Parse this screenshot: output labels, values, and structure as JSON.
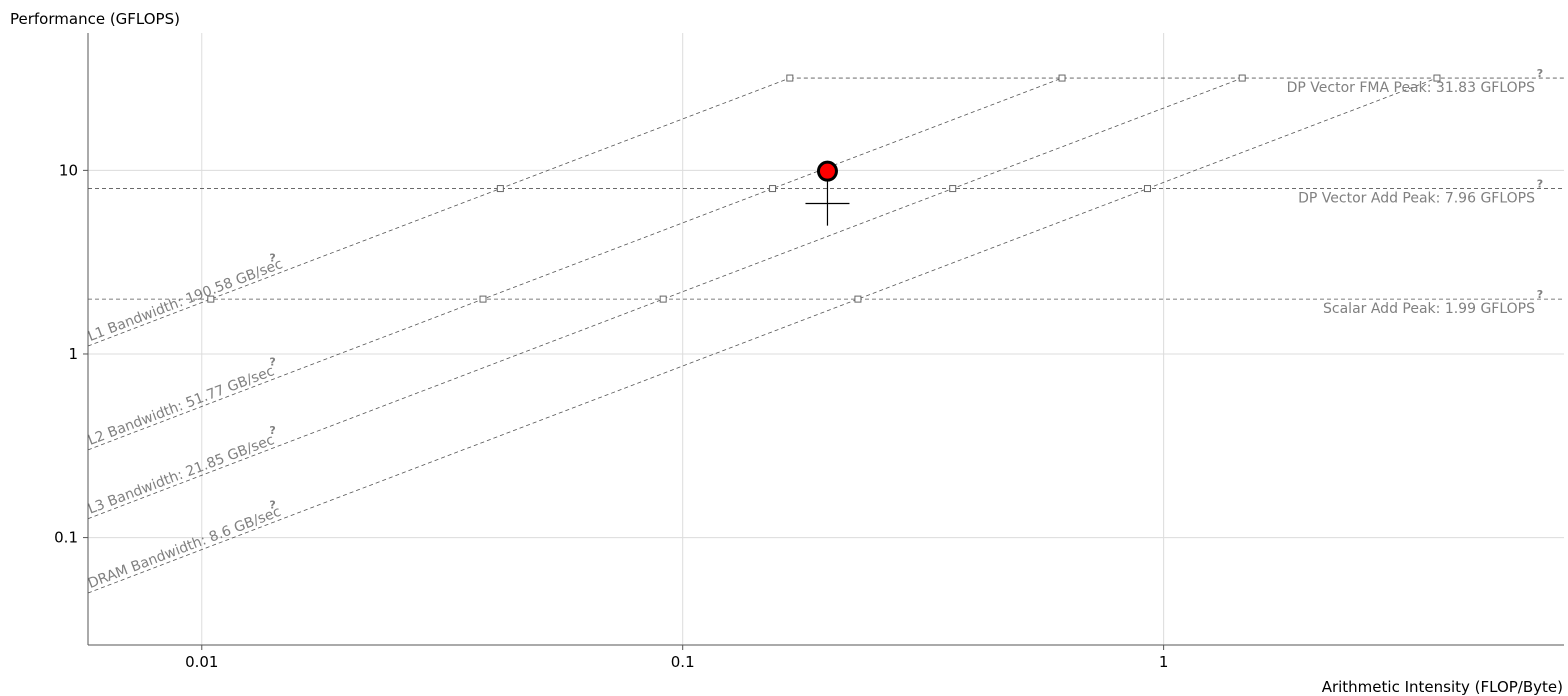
{
  "chart_data": {
    "type": "scatter",
    "scale": "log-log",
    "xlabel": "Arithmetic Intensity (FLOP/Byte)",
    "ylabel": "Performance (GFLOPS)",
    "xlim": [
      0.0058,
      6.8
    ],
    "ylim": [
      0.026,
      56
    ],
    "grid": true,
    "x_ticks": [
      {
        "value": 0.01,
        "label": "0.01"
      },
      {
        "value": 0.1,
        "label": "0.1"
      },
      {
        "value": 1,
        "label": "1"
      }
    ],
    "y_ticks": [
      {
        "value": 0.1,
        "label": "0.1"
      },
      {
        "value": 1,
        "label": "1"
      },
      {
        "value": 10,
        "label": "10"
      }
    ],
    "compute_roofs": [
      {
        "label": "DP Vector FMA Peak: 31.83 GFLOPS",
        "value": 31.83,
        "help": "?"
      },
      {
        "label": "DP Vector Add Peak: 7.96 GFLOPS",
        "value": 7.96,
        "help": "?"
      },
      {
        "label": "Scalar Add Peak: 1.99 GFLOPS",
        "value": 1.99,
        "help": "?"
      }
    ],
    "bandwidth_roofs": [
      {
        "label": "L1 Bandwidth: 190.58 GB/sec",
        "value": 190.58,
        "help": "?"
      },
      {
        "label": "L2 Bandwidth: 51.77 GB/sec",
        "value": 51.77,
        "help": "?"
      },
      {
        "label": "L3 Bandwidth: 21.85 GB/sec",
        "value": 21.85,
        "help": "?"
      },
      {
        "label": "DRAM Bandwidth: 8.6 GB/sec",
        "value": 8.6,
        "help": "?"
      }
    ],
    "points": [
      {
        "x": 0.2,
        "y": 9.9,
        "color": "#ff0000",
        "outline": "#000000"
      }
    ],
    "marker_crosshair": {
      "x": 0.2,
      "y": 6.6,
      "y_top": 9.9,
      "y_bottom": 5.0
    }
  }
}
